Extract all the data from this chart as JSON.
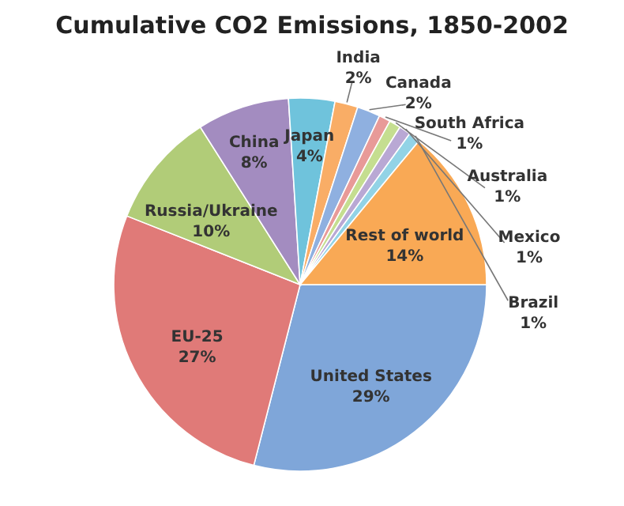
{
  "chart_data": {
    "type": "pie",
    "title": "Cumulative CO2 Emissions, 1850-2002",
    "categories": [
      "United States",
      "EU-25",
      "Russia/Ukraine",
      "China",
      "Japan",
      "India",
      "Canada",
      "South Africa",
      "Australia",
      "Mexico",
      "Brazil",
      "Rest of world"
    ],
    "values": [
      29,
      27,
      10,
      8,
      4,
      2,
      2,
      1,
      1,
      1,
      1,
      14
    ],
    "value_labels": [
      "29%",
      "27%",
      "10%",
      "8%",
      "4%",
      "2%",
      "2%",
      "1%",
      "1%",
      "1%",
      "1%",
      "14%"
    ],
    "colors": [
      "#7fa6d9",
      "#e07a78",
      "#b1cc78",
      "#a38cc0",
      "#6fc3dc",
      "#f9ad66",
      "#8fb0e0",
      "#e89a98",
      "#c5de90",
      "#b9a8d4",
      "#92d3e6",
      "#f9a955"
    ]
  }
}
